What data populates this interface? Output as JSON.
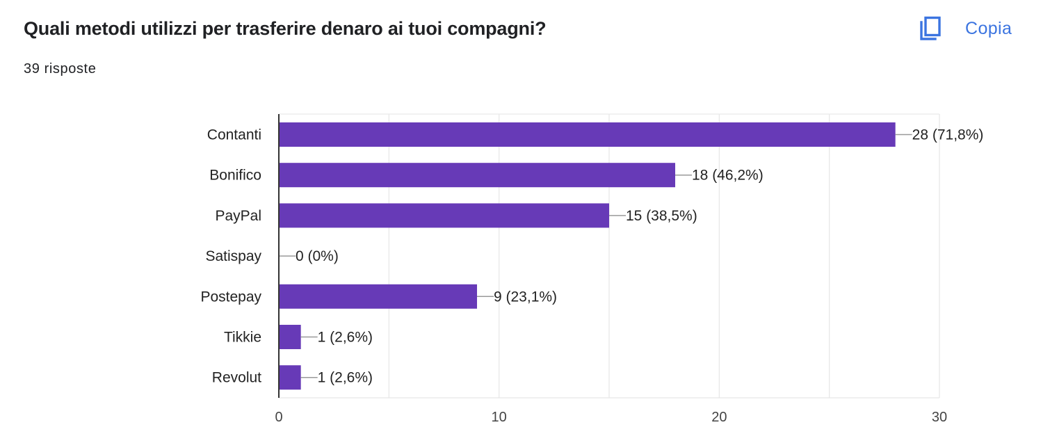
{
  "question": {
    "title": "Quali metodi utilizzi per trasferire denaro ai tuoi compagni?",
    "response_count": "39 risposte"
  },
  "actions": {
    "copy_label": "Copia",
    "copy_icon": "copy-icon"
  },
  "colors": {
    "bar": "#673ab7",
    "accent": "#3b74e0",
    "grid": "#e6e6e6",
    "axis": "#333333",
    "leader": "#999999"
  },
  "chart_data": {
    "type": "bar",
    "orientation": "horizontal",
    "categories": [
      "Contanti",
      "Bonifico",
      "PayPal",
      "Satispay",
      "Postepay",
      "Tikkie",
      "Revolut"
    ],
    "values": [
      28,
      18,
      15,
      0,
      9,
      1,
      1
    ],
    "data_labels": [
      "28 (71,8%)",
      "18 (46,2%)",
      "15 (38,5%)",
      "0 (0%)",
      "9 (23,1%)",
      "1 (2,6%)",
      "1 (2,6%)"
    ],
    "x_ticks": [
      0,
      10,
      20,
      30
    ],
    "xlim": [
      0,
      30
    ],
    "grid": true
  }
}
